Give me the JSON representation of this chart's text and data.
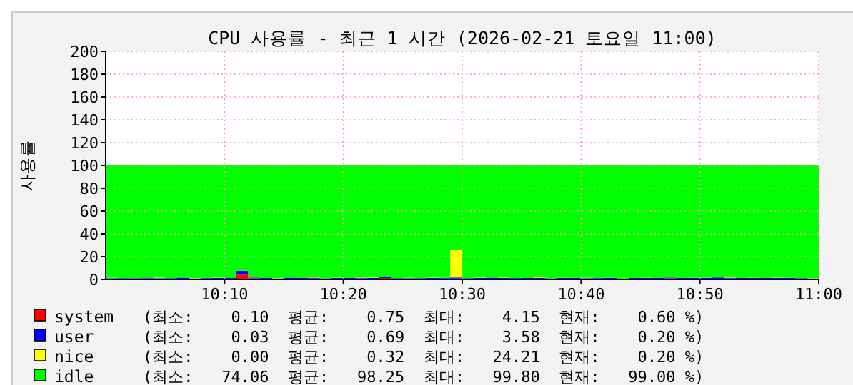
{
  "chart_data": {
    "type": "area",
    "stacked": true,
    "title": "CPU 사용률 - 최근 1 시간 (2026-02-21 토요일 11:00)",
    "ylabel": "사용률",
    "x": [
      10,
      10.0167,
      10.0333,
      10.05,
      10.0667,
      10.0833,
      10.1,
      10.1167,
      10.1333,
      10.15,
      10.1667,
      10.1833,
      10.2,
      10.2167,
      10.2333,
      10.25,
      10.2667,
      10.2833,
      10.3,
      10.3167,
      10.3333,
      10.35,
      10.3667,
      10.3833,
      10.4,
      10.4167,
      10.4333,
      10.45,
      10.4667,
      10.4833,
      10.5,
      10.5167,
      10.5333,
      10.55,
      10.5667,
      10.5833,
      10.6,
      10.6167,
      10.6333,
      10.65,
      10.6667,
      10.6833,
      10.7,
      10.7167,
      10.7333,
      10.75,
      10.7667,
      10.7833,
      10.8,
      10.8167,
      10.8333,
      10.85,
      10.8667,
      10.8833,
      10.9,
      10.9167,
      10.9333,
      10.95,
      10.9667,
      10.9833,
      11
    ],
    "xlim": [
      10,
      11
    ],
    "xticks": [
      {
        "value": 10.1667,
        "label": "10:10"
      },
      {
        "value": 10.3333,
        "label": "10:20"
      },
      {
        "value": 10.5,
        "label": "10:30"
      },
      {
        "value": 10.6667,
        "label": "10:40"
      },
      {
        "value": 10.8333,
        "label": "10:50"
      },
      {
        "value": 11,
        "label": "11:00"
      }
    ],
    "ylim": [
      0,
      200
    ],
    "yticks": [
      0,
      20,
      40,
      60,
      80,
      100,
      120,
      140,
      160,
      180,
      200
    ],
    "grid": true,
    "legend": "bottom",
    "series": [
      {
        "name": "system",
        "color": "#ff0000",
        "values": [
          0.8,
          0.6,
          0.5,
          0.7,
          0.9,
          0.6,
          0.5,
          0.7,
          0.6,
          0.8,
          0.6,
          0.7,
          4.15,
          0.9,
          0.6,
          0.5,
          0.7,
          0.6,
          0.8,
          0.5,
          0.6,
          0.7,
          0.9,
          0.6,
          1.2,
          0.6,
          0.5,
          0.7,
          0.6,
          0.8,
          0.8,
          0.6,
          0.7,
          0.5,
          0.6,
          0.8,
          0.7,
          0.6,
          0.5,
          0.6,
          0.7,
          0.6,
          0.8,
          0.5,
          0.1,
          0.6,
          0.7,
          0.6,
          0.9,
          0.6,
          0.7,
          0.5,
          0.6,
          0.8,
          0.6,
          0.7,
          0.5,
          0.6,
          0.7,
          0.6,
          0.6
        ]
      },
      {
        "name": "user",
        "color": "#0000ff",
        "values": [
          1.2,
          0.5,
          0.6,
          0.4,
          0.7,
          0.5,
          0.6,
          0.8,
          0.4,
          0.6,
          0.7,
          0.5,
          3.58,
          0.8,
          0.6,
          0.5,
          0.9,
          0.6,
          0.7,
          0.4,
          0.6,
          0.5,
          0.7,
          0.6,
          0.8,
          0.5,
          0.6,
          0.4,
          0.7,
          0.6,
          0.93,
          0.5,
          0.6,
          1.0,
          0.7,
          0.5,
          0.6,
          0.8,
          0.4,
          0.6,
          0.7,
          0.5,
          0.6,
          0.9,
          0.03,
          0.7,
          0.5,
          0.6,
          0.8,
          0.6,
          0.7,
          0.9,
          1.1,
          0.6,
          0.7,
          0.5,
          0.8,
          0.6,
          0.7,
          0.5,
          0.2
        ]
      },
      {
        "name": "nice",
        "color": "#ffff00",
        "values": [
          0,
          0.3,
          0,
          0.2,
          0,
          0.4,
          0,
          0,
          0.3,
          0,
          0.2,
          0,
          0,
          0.3,
          0,
          0.2,
          0,
          0,
          0.4,
          0,
          0.3,
          0,
          0.2,
          0.5,
          0,
          0,
          0.3,
          0,
          0.2,
          0,
          24.21,
          0,
          0.3,
          0,
          0.2,
          0,
          0,
          0.4,
          0,
          0.2,
          0,
          0.3,
          0,
          0,
          0,
          0,
          0.2,
          0,
          0.3,
          0,
          0,
          0.2,
          0,
          0.3,
          0,
          0.2,
          0,
          0.3,
          0,
          0,
          0.2
        ]
      },
      {
        "name": "idle",
        "color": "#00ff00",
        "values": [
          98.0,
          98.6,
          98.9,
          98.7,
          98.4,
          98.5,
          98.9,
          98.5,
          98.7,
          98.6,
          98.5,
          98.8,
          92.3,
          98.0,
          98.8,
          98.8,
          98.4,
          98.8,
          98.1,
          99.1,
          98.5,
          98.8,
          98.2,
          98.3,
          98.0,
          98.9,
          98.6,
          98.9,
          98.5,
          98.6,
          74.06,
          98.9,
          98.4,
          98.5,
          98.5,
          98.7,
          98.7,
          98.2,
          99.1,
          98.6,
          98.6,
          98.6,
          98.6,
          98.6,
          99.8,
          98.7,
          98.6,
          98.8,
          98.0,
          98.8,
          98.6,
          98.4,
          98.3,
          98.3,
          98.7,
          98.6,
          98.7,
          98.5,
          98.6,
          98.9,
          99.0
        ]
      }
    ],
    "annotations": [
      "(최소:    0.10  평균:    0.75  최대:    4.15  현재:    0.60 %)",
      "(최소:    0.03  평균:    0.69  최대:    3.58  현재:    0.20 %)",
      "(최소:    0.00  평균:    0.32  최대:   24.21  현재:    0.20 %)",
      "(최소:   74.06  평균:   98.25  최대:   99.80  현재:   99.00 %)"
    ]
  }
}
